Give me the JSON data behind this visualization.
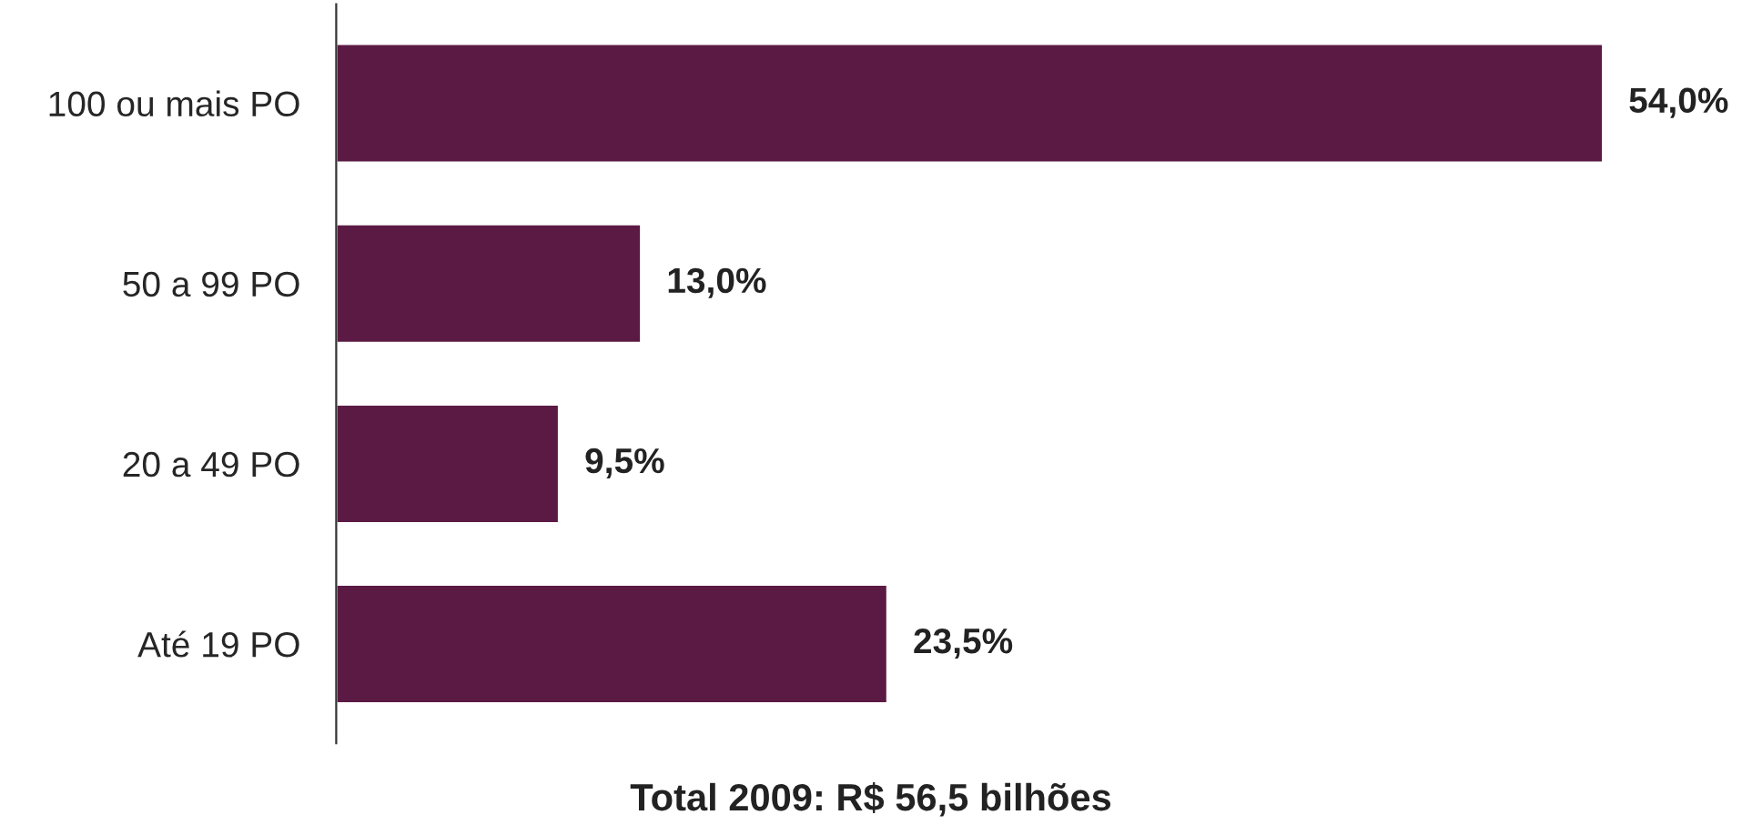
{
  "chart_data": {
    "type": "bar",
    "orientation": "horizontal",
    "categories": [
      "100 ou mais PO",
      "50 a 99 PO",
      "20 a 49 PO",
      "Até 19 PO"
    ],
    "values": [
      54.0,
      13.0,
      9.5,
      23.5
    ],
    "value_labels": [
      "54,0%",
      "13,0%",
      "9,5%",
      "23,5%"
    ],
    "color": "#5b1a43",
    "annotations": [
      "Total 2009: R$ 56,5 bilhões"
    ],
    "grid": false,
    "legend": false
  }
}
